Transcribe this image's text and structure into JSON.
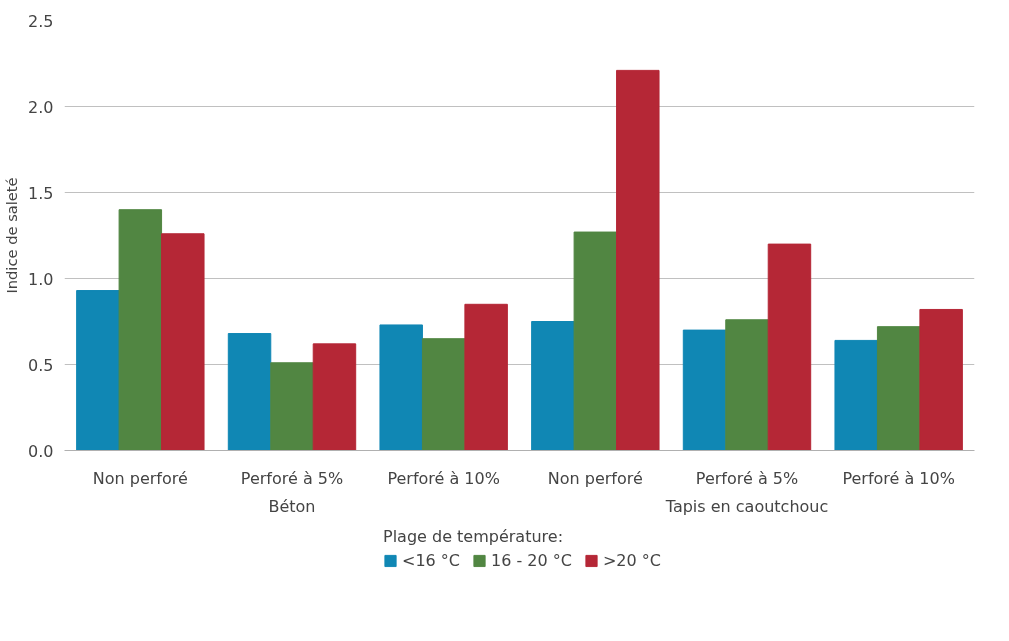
{
  "chart_data": {
    "type": "bar",
    "ylabel": "Indice de saleté",
    "legend_title": "Plage de température:",
    "categories": [
      "Non perforé",
      "Perforé à 5%",
      "Perforé à 10%",
      "Non perforé",
      "Perforé à 5%",
      "Perforé à 10%"
    ],
    "annotations": [
      "Béton",
      "Tapis en caoutchouc"
    ],
    "series": [
      {
        "name": "<16 °C",
        "color": "#1087b4",
        "values": [
          0.93,
          0.68,
          0.73,
          0.75,
          0.7,
          0.64
        ]
      },
      {
        "name": "16 - 20 °C",
        "color": "#518642",
        "values": [
          1.4,
          0.51,
          0.65,
          1.27,
          0.76,
          0.72
        ]
      },
      {
        "name": ">20 °C",
        "color": "#b52736",
        "values": [
          1.26,
          0.62,
          0.85,
          2.21,
          1.2,
          0.82
        ]
      }
    ],
    "ylim": [
      0,
      2.5
    ],
    "yticks": [
      {
        "value": 0,
        "label": "0.0"
      },
      0.5,
      {
        "value": 1,
        "label": "1.0"
      },
      1.5,
      {
        "value": 2,
        "label": "2.0"
      },
      2.5
    ],
    "grid": "y",
    "legend": "bottom"
  }
}
